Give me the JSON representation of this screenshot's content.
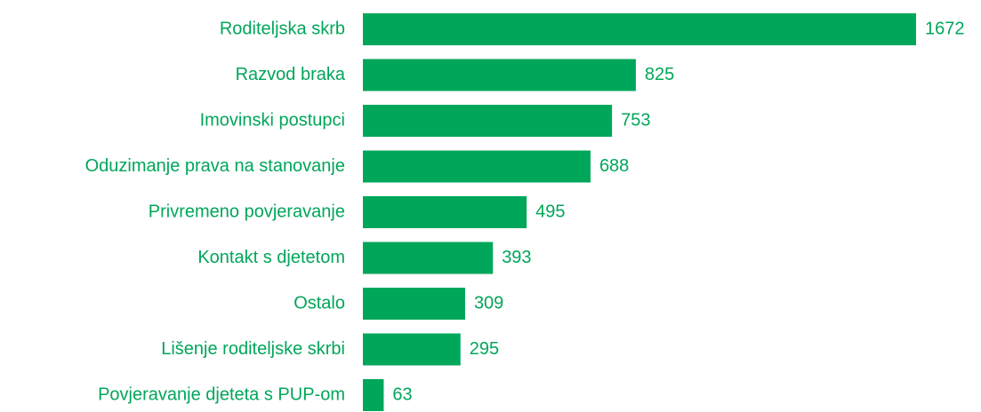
{
  "chart_data": {
    "type": "barh",
    "categories": [
      "Roditeljska skrb",
      "Razvod braka",
      "Imovinski postupci",
      "Oduzimanje prava na stanovanje",
      "Privremeno povjeravanje",
      "Kontakt s djetetom",
      "Ostalo",
      "Lišenje roditeljske skrbi",
      "Povjeravanje djeteta s PUP-om"
    ],
    "values": [
      1672,
      825,
      753,
      688,
      495,
      393,
      309,
      295,
      63
    ],
    "color": "#00a65a"
  }
}
